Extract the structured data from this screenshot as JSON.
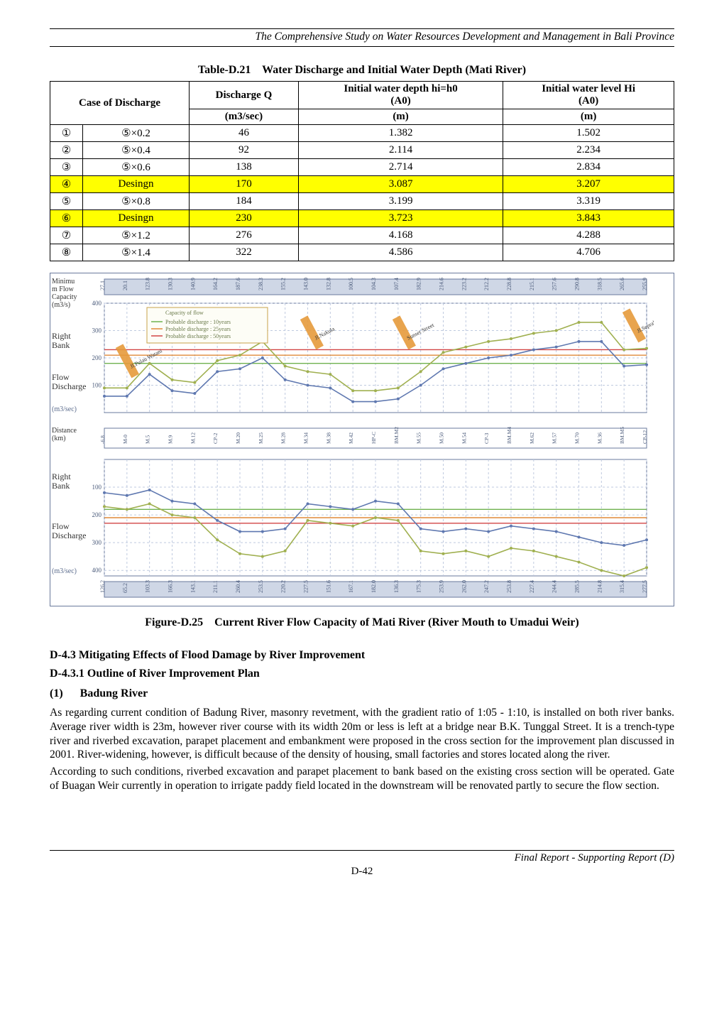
{
  "header": {
    "title": "The Comprehensive Study on Water Resources Development and Management in Bali Province"
  },
  "table": {
    "caption_label": "Table-D.21",
    "caption_text": "Water Discharge and Initial Water Depth (Mati River)",
    "headers": {
      "case": "Case of Discharge",
      "q": "Discharge Q",
      "q_unit": "(m3/sec)",
      "depth": "Initial water depth hi=h0",
      "depth_sub": "(A0)",
      "depth_unit": "(m)",
      "level": "Initial water level Hi",
      "level_sub": "(A0)",
      "level_unit": "(m)"
    },
    "highlight_color": "#ffff00",
    "rows": [
      {
        "num": "①",
        "case": "⑤×0.2",
        "q": "46",
        "depth": "1.382",
        "level": "1.502",
        "hl": false
      },
      {
        "num": "②",
        "case": "⑤×0.4",
        "q": "92",
        "depth": "2.114",
        "level": "2.234",
        "hl": false
      },
      {
        "num": "③",
        "case": "⑤×0.6",
        "q": "138",
        "depth": "2.714",
        "level": "2.834",
        "hl": false
      },
      {
        "num": "④",
        "case": "Desingn",
        "q": "170",
        "depth": "3.087",
        "level": "3.207",
        "hl": true
      },
      {
        "num": "⑤",
        "case": "⑤×0.8",
        "q": "184",
        "depth": "3.199",
        "level": "3.319",
        "hl": false
      },
      {
        "num": "⑥",
        "case": "Desingn",
        "q": "230",
        "depth": "3.723",
        "level": "3.843",
        "hl": true
      },
      {
        "num": "⑦",
        "case": "⑤×1.2",
        "q": "276",
        "depth": "4.168",
        "level": "4.288",
        "hl": false
      },
      {
        "num": "⑧",
        "case": "⑤×1.4",
        "q": "322",
        "depth": "4.586",
        "level": "4.706",
        "hl": false
      }
    ]
  },
  "chart": {
    "border_color": "#6a7a9c",
    "grid_color": "#bfcadf",
    "background_color": "#ffffff",
    "panels": {
      "top": {
        "ylabel_lines": [
          "Minimu",
          "m Flow",
          "Capacity",
          "(m3/s)"
        ],
        "right_bank_label": "Right\nBank",
        "flow_label": "Flow\nDischarge",
        "unit_label": "(m3/sec)",
        "yticks": [
          100,
          200,
          300,
          400
        ],
        "legend": {
          "title": "Capacity of flow",
          "items": [
            {
              "label": "Probable discharge : 10years",
              "color": "#6fb24f"
            },
            {
              "label": "Probable discharge : 25years",
              "color": "#e08a3a"
            },
            {
              "label": "Probable discharge : 50years",
              "color": "#d24545"
            }
          ],
          "box_color": "#c8a24a",
          "text_color": "#6a7a4a"
        },
        "road_labels": [
          "Jl.Pulau Watani",
          "Jl.Nakula",
          "Sunset Street",
          "Jl.Seprakan"
        ],
        "road_color": "#e59a3b",
        "top_tick_values": [
          "27.1",
          "20.1",
          "123.8",
          "130.3",
          "140.9",
          "164.2",
          "187.6",
          "238.3",
          "155.2",
          "143.0",
          "132.8",
          "100.5",
          "104.3",
          "107.4",
          "182.9",
          "214.6",
          "223.2",
          "212.2",
          "228.8",
          "215.1",
          "257.6",
          "290.8",
          "318.5",
          "265.6",
          "255.9"
        ],
        "series": [
          {
            "color": "#5f78b0",
            "values": [
              60,
              60,
              140,
              80,
              70,
              150,
              160,
              200,
              120,
              100,
              90,
              40,
              40,
              50,
              100,
              160,
              180,
              200,
              210,
              230,
              240,
              260,
              260,
              170,
              175
            ]
          },
          {
            "color": "#a0b050",
            "values": [
              90,
              90,
              180,
              120,
              110,
              190,
              210,
              260,
              170,
              150,
              140,
              80,
              80,
              90,
              150,
              220,
              240,
              260,
              270,
              290,
              300,
              330,
              330,
              230,
              235
            ]
          }
        ],
        "ref_lines": [
          {
            "color": "#6fb24f",
            "y": 180
          },
          {
            "color": "#e08a3a",
            "y": 210
          },
          {
            "color": "#d24545",
            "y": 230
          }
        ]
      },
      "mid": {
        "ylabel": "Distance\n(km)",
        "tick_values": [
          "-6.8",
          "M-0",
          "M.5",
          "M.9",
          "M.12",
          "CP-2",
          "M.20",
          "M.25",
          "M.28",
          "M.34",
          "M.38",
          "M.42",
          "HP-C",
          "BM.M2",
          "M.55",
          "M.50",
          "M.54",
          "CP-3",
          "BM.M4",
          "M.62",
          "M.57",
          "M.70",
          "M.36",
          "BM.M5",
          "CP-12"
        ]
      },
      "bottom": {
        "right_bank_label": "Right\nBank",
        "flow_label": "Flow\nDischarge",
        "unit_label": "(m3/sec)",
        "yticks": [
          100,
          200,
          300,
          400
        ],
        "series": [
          {
            "color": "#5f78b0",
            "values": [
              120,
              130,
              110,
              150,
              160,
              220,
              260,
              260,
              250,
              160,
              170,
              180,
              150,
              160,
              250,
              260,
              250,
              260,
              240,
              250,
              260,
              280,
              300,
              310,
              290
            ]
          },
          {
            "color": "#a0b050",
            "values": [
              170,
              180,
              160,
              200,
              210,
              290,
              340,
              350,
              330,
              220,
              230,
              240,
              210,
              220,
              330,
              340,
              330,
              350,
              320,
              330,
              350,
              370,
              400,
              420,
              390
            ]
          }
        ],
        "ref_lines": [
          {
            "color": "#6fb24f",
            "y": 180
          },
          {
            "color": "#e08a3a",
            "y": 210
          },
          {
            "color": "#d24545",
            "y": 230
          }
        ],
        "bottom_tick_values": [
          "126.2",
          "65.2",
          "103.3",
          "166.3",
          "143.1",
          "211.1",
          "260.4",
          "253.5",
          "220.2",
          "227.5",
          "151.6",
          "167.1",
          "182.0",
          "136.3",
          "175.3",
          "253.9",
          "262.0",
          "247.2",
          "253.8",
          "227.4",
          "244.4",
          "285.5",
          "214.8",
          "315.4",
          "277.5"
        ]
      }
    }
  },
  "figure": {
    "caption_label": "Figure-D.25",
    "caption_text": "Current River Flow Capacity of Mati River (River Mouth to Umadui Weir)"
  },
  "sections": {
    "d43": "D-4.3  Mitigating Effects of Flood Damage by River Improvement",
    "d431": "D-4.3.1  Outline of River Improvement Plan",
    "paren1_num": "(1)",
    "paren1_title": "Badung River",
    "para1": "As regarding current condition of Badung River, masonry revetment, with the gradient ratio of 1:05 - 1:10, is installed on both river banks.  Average river width is 23m, however river course with its width 20m or less is left at a bridge near B.K. Tunggal Street.   It is a trench-type river and riverbed excavation, parapet placement and embankment were proposed in the cross section for the improvement plan discussed in 2001.   River-widening, however, is difficult because of the density of housing, small factories and stores located along the river.",
    "para2": "According to such conditions, riverbed excavation and parapet placement to bank based on the existing cross section will be operated.   Gate of Buagan Weir currently in operation to irrigate paddy field located in the downstream will be renovated partly to secure the flow section."
  },
  "footer": {
    "page": "D-42",
    "right": "Final Report - Supporting Report (D)"
  }
}
